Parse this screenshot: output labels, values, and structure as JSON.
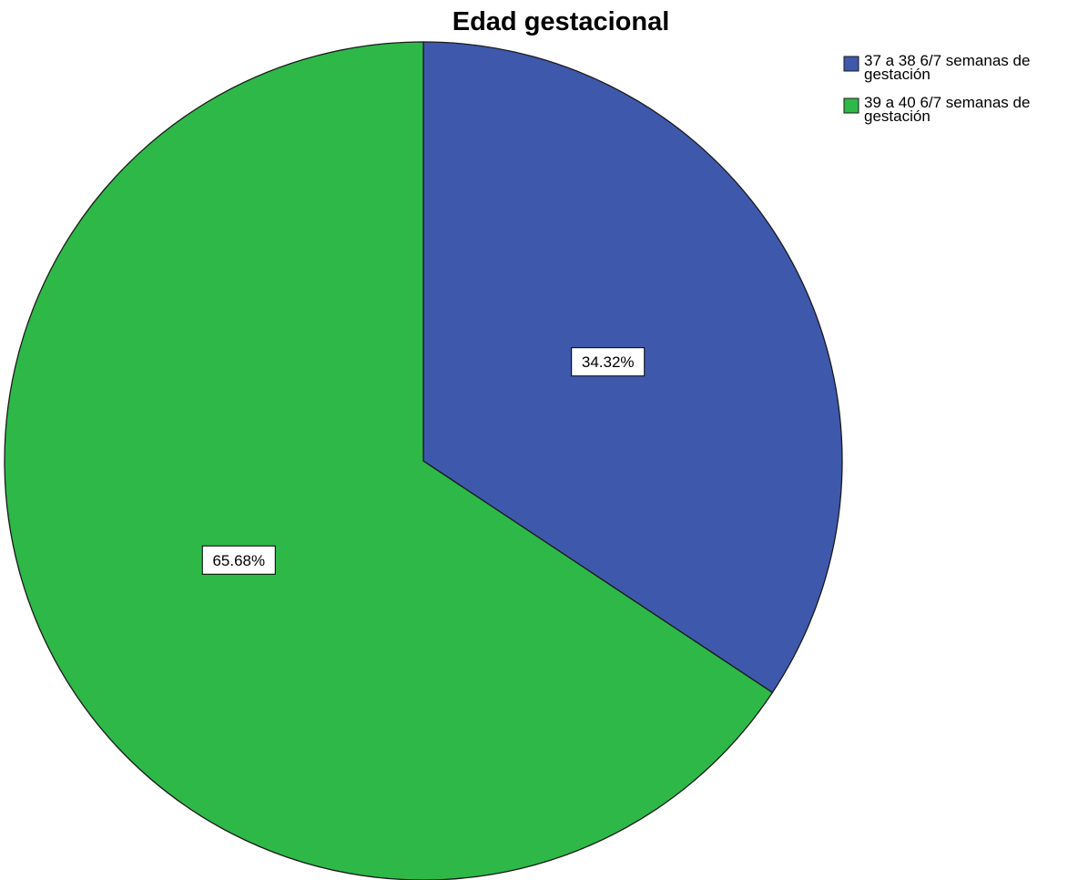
{
  "chart_data": {
    "type": "pie",
    "title": "Edad gestacional",
    "legend_position": "top-right",
    "slices": [
      {
        "label_lines": [
          "37 a 38 6/7 semanas de",
          "gestación"
        ],
        "value": 34.32,
        "display": "34.32%",
        "color": "#3e58ac"
      },
      {
        "label_lines": [
          "39 a 40 6/7 semanas de",
          "gestación"
        ],
        "value": 65.68,
        "display": "65.68%",
        "color": "#2eb848"
      }
    ]
  }
}
